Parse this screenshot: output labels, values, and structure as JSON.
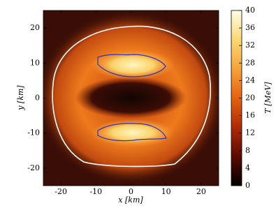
{
  "chart_data": {
    "type": "heatmap",
    "xlabel": "x [km]",
    "ylabel": "y [km]",
    "xlim": [
      -25,
      25
    ],
    "ylim": [
      -25,
      25
    ],
    "xticks": [
      -20,
      -10,
      0,
      10,
      20
    ],
    "yticks": [
      -20,
      -10,
      0,
      10,
      20
    ],
    "colorbar": {
      "label": "T [MeV]",
      "lim": [
        0,
        40
      ],
      "ticks": [
        0,
        4,
        8,
        12,
        16,
        20,
        24,
        28,
        32,
        36,
        40
      ],
      "colors": [
        "#000000",
        "#5a0a02",
        "#b02a06",
        "#e4620e",
        "#f7a23a",
        "#fbd874",
        "#fffde8"
      ]
    }
  }
}
